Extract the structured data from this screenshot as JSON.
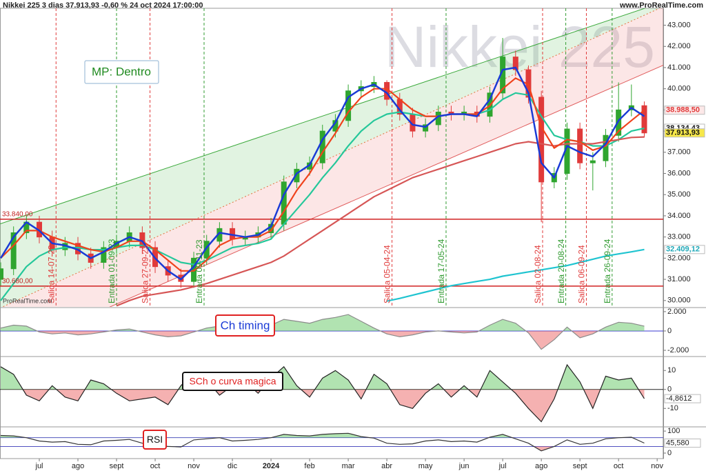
{
  "chart_data": [
    {
      "type": "candlestick",
      "title": "Nikkei 225 3 dias 37.913,93 -0,60 % 24 oct 2024 17:00:00",
      "watermark": "Nikkei 225",
      "source": "www.ProRealTime.com",
      "credit": "ProRealTime.com",
      "annotation": "MP: Dentro",
      "categories": [
        null,
        null,
        null,
        "jul",
        null,
        null,
        "ago",
        null,
        null,
        "sept",
        null,
        null,
        "oct",
        null,
        null,
        "nov",
        null,
        null,
        "dic",
        null,
        null,
        "2024",
        null,
        null,
        "feb",
        null,
        null,
        "mar",
        null,
        null,
        "abr",
        null,
        null,
        "may",
        null,
        null,
        "jun",
        null,
        null,
        "jul",
        null,
        null,
        "ago",
        null,
        null,
        "sept",
        null,
        null,
        "oct",
        null,
        null,
        "nov"
      ],
      "open": [
        31000,
        31500,
        33200,
        33700,
        33000,
        32400,
        32700,
        32200,
        31800,
        32500,
        32800,
        33200,
        32500,
        31600,
        31200,
        30900,
        32000,
        32800,
        33400,
        32900,
        33000,
        33200,
        33600,
        35600,
        36200,
        36500,
        38000,
        38500,
        39900,
        40100,
        40300,
        39500,
        38800,
        38000,
        38300,
        38900,
        38800,
        38900,
        38700,
        39800,
        41500,
        40900,
        39600,
        35600,
        36000,
        38100,
        36500,
        36600,
        37800,
        39000,
        39200,
        null
      ],
      "high": [
        31800,
        33500,
        34000,
        34000,
        33300,
        33000,
        33000,
        32500,
        32800,
        33100,
        33500,
        33500,
        32800,
        31900,
        31500,
        32300,
        33100,
        33700,
        33700,
        33300,
        33500,
        33900,
        35900,
        36500,
        36800,
        38300,
        38800,
        40200,
        40400,
        40600,
        40400,
        39800,
        39100,
        38600,
        39200,
        39200,
        39200,
        39200,
        40100,
        42400,
        41800,
        41100,
        39900,
        36300,
        38400,
        38400,
        37000,
        38100,
        40300,
        40200,
        39400,
        null
      ],
      "low": [
        30700,
        31200,
        32900,
        32700,
        32100,
        32100,
        31900,
        31500,
        31500,
        32200,
        32500,
        32200,
        31300,
        30900,
        30600,
        30600,
        31700,
        32500,
        32600,
        32600,
        32700,
        32900,
        33300,
        35300,
        35900,
        36200,
        37700,
        38200,
        39600,
        39800,
        39200,
        38500,
        37700,
        37700,
        38000,
        38500,
        38500,
        38400,
        38400,
        39500,
        40600,
        39300,
        33700,
        35300,
        35700,
        36200,
        35200,
        36300,
        37500,
        38700,
        37700,
        null
      ],
      "close": [
        31500,
        33200,
        33700,
        33000,
        32400,
        32700,
        32200,
        31800,
        32500,
        32800,
        33200,
        32500,
        31600,
        31200,
        30900,
        32000,
        32800,
        33400,
        32900,
        33000,
        33200,
        33600,
        35600,
        36200,
        36500,
        38000,
        38500,
        39900,
        40100,
        40300,
        39500,
        38800,
        38000,
        38300,
        38900,
        38800,
        38900,
        38700,
        39800,
        41500,
        40900,
        39600,
        35600,
        36000,
        38100,
        36500,
        36600,
        37800,
        39000,
        39200,
        37913.93,
        null
      ],
      "up_color": "#2fa52f",
      "down_color": "#e03a3a",
      "series": [
        {
          "color": "#25c79a",
          "values": [
            30000,
            30800,
            31600,
            32100,
            32400,
            32500,
            32500,
            32400,
            32400,
            32500,
            32600,
            32600,
            32400,
            32100,
            31800,
            31700,
            31900,
            32200,
            32500,
            32600,
            32700,
            32900,
            33600,
            34300,
            35000,
            35800,
            36500,
            37300,
            38000,
            38500,
            38800,
            38900,
            38800,
            38700,
            38700,
            38800,
            38800,
            38800,
            39000,
            39500,
            39800,
            39700,
            38700,
            37800,
            37600,
            37500,
            37300,
            37300,
            37600,
            38000,
            38134.43,
            null
          ]
        },
        {
          "color": "#d65656",
          "values": [
            null,
            null,
            null,
            null,
            null,
            null,
            null,
            null,
            null,
            29750,
            30000,
            30200,
            30300,
            30400,
            30500,
            30650,
            30800,
            31000,
            31200,
            31400,
            31600,
            31800,
            32100,
            32500,
            32900,
            33300,
            33700,
            34100,
            34500,
            34900,
            35200,
            35500,
            35800,
            36000,
            36200,
            36400,
            36600,
            36800,
            37000,
            37200,
            37400,
            37500,
            37400,
            37300,
            37400,
            37400,
            37400,
            37500,
            37600,
            37700,
            37722.14,
            null
          ]
        },
        {
          "color": "#1fc4d0",
          "values": [
            null,
            null,
            null,
            null,
            null,
            null,
            null,
            null,
            null,
            null,
            null,
            null,
            null,
            null,
            null,
            null,
            null,
            null,
            null,
            null,
            null,
            null,
            null,
            null,
            null,
            null,
            null,
            null,
            null,
            null,
            29970,
            30100,
            30250,
            30400,
            30550,
            30700,
            30800,
            30900,
            31000,
            31150,
            31250,
            31350,
            31450,
            31550,
            31650,
            31800,
            31950,
            32100,
            32200,
            32300,
            32409.12,
            null
          ]
        },
        {
          "color": "#f0421c",
          "values": [
            32000,
            32600,
            33300,
            33300,
            33000,
            32800,
            32600,
            32400,
            32300,
            32500,
            32800,
            32800,
            32400,
            31900,
            31400,
            31400,
            31900,
            32600,
            32900,
            33000,
            33000,
            33300,
            34200,
            35200,
            36000,
            37000,
            37900,
            38900,
            39600,
            40000,
            40000,
            39500,
            39000,
            38700,
            38700,
            38800,
            38800,
            38800,
            39200,
            40000,
            40500,
            40200,
            38200,
            37200,
            37600,
            37500,
            37100,
            37300,
            38000,
            38500,
            38988.5,
            null
          ]
        },
        {
          "color": "#1a3bd6",
          "values": [
            32000,
            33000,
            33700,
            33300,
            32700,
            32600,
            32400,
            32000,
            32300,
            32700,
            33000,
            32800,
            32000,
            31400,
            31000,
            31600,
            32500,
            33200,
            33100,
            33000,
            33100,
            33500,
            35000,
            36000,
            36400,
            37600,
            38400,
            39600,
            40000,
            40200,
            39800,
            39000,
            38300,
            38200,
            38700,
            38800,
            38800,
            38700,
            39500,
            40900,
            41000,
            39800,
            36500,
            35800,
            37300,
            37000,
            36800,
            37400,
            38500,
            39100,
            38700,
            null
          ]
        }
      ],
      "ylim": [
        29700,
        43800
      ],
      "yticks": [
        {
          "value": 43000,
          "label": "43.000"
        },
        {
          "value": 42000,
          "label": "42.000"
        },
        {
          "value": 41000,
          "label": "41.000"
        },
        {
          "value": 40000,
          "label": "40.000"
        },
        {
          "value": 39000,
          "label": "39.000"
        },
        {
          "value": 38000,
          "label": "38.000"
        },
        {
          "value": 37000,
          "label": "37.000"
        },
        {
          "value": 36000,
          "label": "36.000"
        },
        {
          "value": 35000,
          "label": "35.000"
        },
        {
          "value": 34000,
          "label": "34.000"
        },
        {
          "value": 33000,
          "label": "33.000"
        },
        {
          "value": 32000,
          "label": "32.000"
        },
        {
          "value": 31000,
          "label": "31.000"
        },
        {
          "value": 30000,
          "label": "30.000"
        }
      ],
      "levels": [
        {
          "value": 33840,
          "label": "33.840,00"
        },
        {
          "value": 30680,
          "label": "30.680,00"
        }
      ],
      "price_labels": [
        {
          "value": 38988.5,
          "label": "38.988,50",
          "color": "#e03a3a",
          "background": "#fde8e8"
        },
        {
          "value": 38134.43,
          "label": "38.134,43",
          "color": "#111111",
          "background": "#ffffff"
        },
        {
          "value": 37913.93,
          "label": "37.913,93",
          "color": "#111111",
          "background": "#f7e84a"
        },
        {
          "value": 32409.12,
          "label": "32.409,12",
          "color": "#1fa8b8",
          "background": "#ffffff"
        }
      ],
      "channel": {
        "upper": [
          33620,
          44090
        ],
        "middle": [
          29645,
          43880
        ],
        "lower": [
          27430,
          41110
        ]
      },
      "signals": [
        {
          "label": "Salida 14-07-23",
          "color": "#e03a3a"
        },
        {
          "label": "Entrada 01-09-23",
          "color": "#2f9a2f"
        },
        {
          "label": "Salida 27-09-23",
          "color": "#e03a3a"
        },
        {
          "label": "Entrada 09-11-23",
          "color": "#2f9a2f"
        },
        {
          "label": "Salida 05-04-24",
          "color": "#e03a3a"
        },
        {
          "label": "Entrada 17-05-24",
          "color": "#2f9a2f"
        },
        {
          "label": "Salida 02-08-24",
          "color": "#e03a3a"
        },
        {
          "label": "Entrada 20-08-24",
          "color": "#2f9a2f"
        },
        {
          "label": "Salida 06-09-24",
          "color": "#e03a3a"
        },
        {
          "label": "Entrada 26-09-24",
          "color": "#2f9a2f"
        }
      ]
    },
    {
      "type": "oscillator",
      "title": "Ch timing",
      "series": [
        {
          "color": "#8a8a8a",
          "values": [
            300,
            600,
            500,
            -100,
            -300,
            -200,
            -400,
            -300,
            -100,
            100,
            200,
            -100,
            -400,
            -600,
            -500,
            -100,
            300,
            500,
            300,
            100,
            200,
            600,
            1200,
            1000,
            800,
            1200,
            1400,
            1700,
            1000,
            300,
            -300,
            -600,
            -400,
            -100,
            0,
            -100,
            -200,
            -100,
            600,
            1200,
            800,
            -200,
            -1900,
            -900,
            400,
            -700,
            -300,
            400,
            900,
            800,
            500,
            null
          ]
        }
      ],
      "ylim": [
        -2500,
        2350
      ],
      "yticks": [
        {
          "value": 2000,
          "label": "2.000"
        },
        0,
        {
          "value": -2000,
          "label": "-2.000"
        }
      ],
      "zero_color": "#3a3ad0"
    },
    {
      "type": "oscillator",
      "title": "SCh o curva magica",
      "series": [
        {
          "color": "#222222",
          "values": [
            12,
            8,
            -3,
            -6,
            2,
            -4,
            -6,
            5,
            3,
            -2,
            -6,
            -5,
            -4,
            -8,
            2,
            9,
            5,
            -3,
            2,
            4,
            -2,
            6,
            12,
            2,
            -4,
            6,
            10,
            5,
            -5,
            8,
            3,
            -8,
            -10,
            -2,
            3,
            -4,
            2,
            -4,
            10,
            4,
            -2,
            -10,
            -17,
            -5,
            13,
            4,
            -10,
            7,
            5,
            6,
            -4.8612,
            null
          ]
        }
      ],
      "ylim": [
        -19,
        17
      ],
      "yticks": [
        10,
        0,
        -10
      ],
      "zero_color": "#222222",
      "markers": [
        {
          "value": -4.8612,
          "label": "-4,8612"
        }
      ]
    },
    {
      "type": "rsi",
      "title": "RSI",
      "series": [
        {
          "color": "#333333",
          "values": [
            80,
            78,
            70,
            55,
            50,
            52,
            40,
            38,
            55,
            58,
            62,
            45,
            35,
            30,
            28,
            60,
            65,
            70,
            55,
            58,
            62,
            70,
            85,
            80,
            78,
            85,
            88,
            90,
            75,
            68,
            45,
            40,
            42,
            55,
            60,
            52,
            55,
            50,
            72,
            85,
            65,
            45,
            10,
            30,
            60,
            40,
            45,
            65,
            70,
            72,
            45.58,
            null
          ]
        }
      ],
      "ylim": [
        -25,
        116
      ],
      "yticks": [
        100,
        0
      ],
      "levels": [
        70,
        30
      ],
      "markers": [
        {
          "value": 45.58,
          "label": "45,580"
        }
      ]
    }
  ]
}
